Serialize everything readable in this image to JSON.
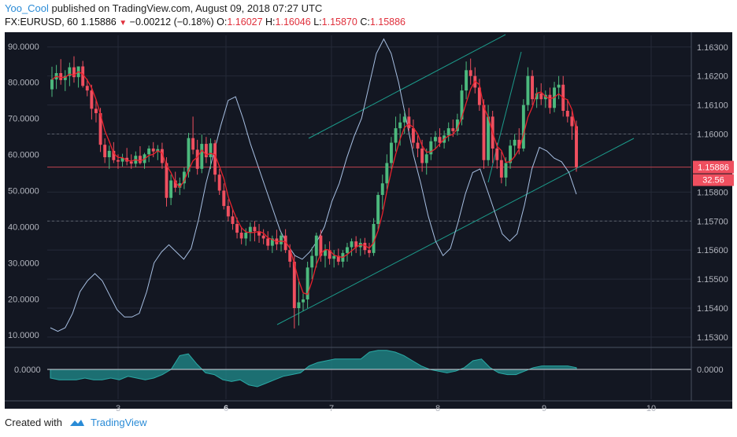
{
  "header": {
    "author": "Yoo_Cool",
    "published_text": "published on TradingView.com, August 09, 2018 07:27 UTC",
    "symbol": "FX:EURUSD, 60",
    "last": "1.15886",
    "change": "−0.00212 (−0.18%)",
    "o_label": "O:",
    "o_value": "1.16027",
    "h_label": "H:",
    "h_value": "1.16046",
    "l_label": "L:",
    "l_value": "1.15870",
    "c_label": "C:",
    "c_value": "1.15886"
  },
  "footer": {
    "created_with": "Created with",
    "brand": "TradingView"
  },
  "price_tag": "1.15886",
  "osc_tag": "32.56",
  "colors": {
    "bg": "#131722",
    "up": "#4cb97d",
    "down": "#ef4f5f",
    "ma": "#e8222d",
    "osc": "#a7bfe2",
    "channel": "#1c9a8a",
    "hist": "#1e7f80",
    "tag": "#ef4f5f"
  },
  "chart_data": {
    "type": "candlestick",
    "symbol": "FX:EURUSD",
    "interval": "60",
    "price_axis": {
      "ticks": [
        "1.16300",
        "1.16200",
        "1.16100",
        "1.16000",
        "1.15886",
        "1.15800",
        "1.15700",
        "1.15600",
        "1.15500",
        "1.15400",
        "1.15300"
      ],
      "range": [
        1.1527,
        1.1634
      ]
    },
    "osc_axis": {
      "ticks": [
        "90.0000",
        "80.0000",
        "70.0000",
        "60.0000",
        "50.0000",
        "40.0000",
        "30.0000",
        "20.0000",
        "10.0000"
      ],
      "range": [
        7,
        93
      ]
    },
    "x_axis": {
      "ticks": [
        "3",
        "6",
        "7",
        "8",
        "9",
        "10"
      ],
      "bold": [
        "6"
      ]
    },
    "candles": [
      {
        "o": 1.16154,
        "h": 1.16232,
        "l": 1.16128,
        "c": 1.16188
      },
      {
        "o": 1.16188,
        "h": 1.16238,
        "l": 1.16155,
        "c": 1.1621
      },
      {
        "o": 1.1621,
        "h": 1.16258,
        "l": 1.1617,
        "c": 1.16186
      },
      {
        "o": 1.16186,
        "h": 1.1622,
        "l": 1.16148,
        "c": 1.162
      },
      {
        "o": 1.162,
        "h": 1.16246,
        "l": 1.16165,
        "c": 1.1623
      },
      {
        "o": 1.1623,
        "h": 1.16268,
        "l": 1.16177,
        "c": 1.16196
      },
      {
        "o": 1.16196,
        "h": 1.16225,
        "l": 1.1616,
        "c": 1.16233
      },
      {
        "o": 1.16233,
        "h": 1.16252,
        "l": 1.1616,
        "c": 1.16166
      },
      {
        "o": 1.16166,
        "h": 1.1619,
        "l": 1.1613,
        "c": 1.1615
      },
      {
        "o": 1.1615,
        "h": 1.1617,
        "l": 1.1605,
        "c": 1.16087
      },
      {
        "o": 1.16087,
        "h": 1.16118,
        "l": 1.1604,
        "c": 1.16072
      },
      {
        "o": 1.16072,
        "h": 1.1609,
        "l": 1.15938,
        "c": 1.15963
      },
      {
        "o": 1.15963,
        "h": 1.15985,
        "l": 1.159,
        "c": 1.1592
      },
      {
        "o": 1.1592,
        "h": 1.1596,
        "l": 1.1588,
        "c": 1.15942
      },
      {
        "o": 1.15942,
        "h": 1.15972,
        "l": 1.159,
        "c": 1.1591
      },
      {
        "o": 1.1591,
        "h": 1.1593,
        "l": 1.1588,
        "c": 1.15905
      },
      {
        "o": 1.15905,
        "h": 1.15932,
        "l": 1.15888,
        "c": 1.15918
      },
      {
        "o": 1.15918,
        "h": 1.15952,
        "l": 1.15892,
        "c": 1.15905
      },
      {
        "o": 1.15905,
        "h": 1.1593,
        "l": 1.1588,
        "c": 1.15898
      },
      {
        "o": 1.15898,
        "h": 1.1594,
        "l": 1.15885,
        "c": 1.15925
      },
      {
        "o": 1.15925,
        "h": 1.15958,
        "l": 1.15895,
        "c": 1.159
      },
      {
        "o": 1.159,
        "h": 1.15935,
        "l": 1.1588,
        "c": 1.1593
      },
      {
        "o": 1.1593,
        "h": 1.1596,
        "l": 1.15903,
        "c": 1.1595
      },
      {
        "o": 1.1595,
        "h": 1.15972,
        "l": 1.1592,
        "c": 1.1594
      },
      {
        "o": 1.1594,
        "h": 1.15962,
        "l": 1.1591,
        "c": 1.15948
      },
      {
        "o": 1.15948,
        "h": 1.1597,
        "l": 1.1588,
        "c": 1.159
      },
      {
        "o": 1.159,
        "h": 1.1592,
        "l": 1.1575,
        "c": 1.1578
      },
      {
        "o": 1.1578,
        "h": 1.1586,
        "l": 1.15755,
        "c": 1.1584
      },
      {
        "o": 1.1584,
        "h": 1.1587,
        "l": 1.158,
        "c": 1.15815
      },
      {
        "o": 1.15815,
        "h": 1.1585,
        "l": 1.1579,
        "c": 1.1583
      },
      {
        "o": 1.1583,
        "h": 1.15885,
        "l": 1.1581,
        "c": 1.1587
      },
      {
        "o": 1.1587,
        "h": 1.16004,
        "l": 1.1585,
        "c": 1.15986
      },
      {
        "o": 1.15986,
        "h": 1.1606,
        "l": 1.1593,
        "c": 1.15946
      },
      {
        "o": 1.15946,
        "h": 1.1598,
        "l": 1.1586,
        "c": 1.1588
      },
      {
        "o": 1.1588,
        "h": 1.15998,
        "l": 1.15865,
        "c": 1.15966
      },
      {
        "o": 1.15966,
        "h": 1.1599,
        "l": 1.159,
        "c": 1.1592
      },
      {
        "o": 1.1592,
        "h": 1.15985,
        "l": 1.1588,
        "c": 1.15968
      },
      {
        "o": 1.15968,
        "h": 1.1598,
        "l": 1.15835,
        "c": 1.1586
      },
      {
        "o": 1.1586,
        "h": 1.1588,
        "l": 1.1579,
        "c": 1.15805
      },
      {
        "o": 1.15805,
        "h": 1.1583,
        "l": 1.1574,
        "c": 1.15752
      },
      {
        "o": 1.15752,
        "h": 1.15775,
        "l": 1.157,
        "c": 1.15716
      },
      {
        "o": 1.15716,
        "h": 1.1574,
        "l": 1.1567,
        "c": 1.1569
      },
      {
        "o": 1.1569,
        "h": 1.15712,
        "l": 1.1564,
        "c": 1.1566
      },
      {
        "o": 1.1566,
        "h": 1.1568,
        "l": 1.1562,
        "c": 1.1564
      },
      {
        "o": 1.1564,
        "h": 1.15675,
        "l": 1.15615,
        "c": 1.1566
      },
      {
        "o": 1.1566,
        "h": 1.15695,
        "l": 1.1563,
        "c": 1.1568
      },
      {
        "o": 1.1568,
        "h": 1.157,
        "l": 1.1563,
        "c": 1.15665
      },
      {
        "o": 1.15665,
        "h": 1.1569,
        "l": 1.15625,
        "c": 1.1565
      },
      {
        "o": 1.1565,
        "h": 1.15672,
        "l": 1.1562,
        "c": 1.1564
      },
      {
        "o": 1.1564,
        "h": 1.15665,
        "l": 1.156,
        "c": 1.15615
      },
      {
        "o": 1.15615,
        "h": 1.1565,
        "l": 1.1559,
        "c": 1.1564
      },
      {
        "o": 1.1564,
        "h": 1.1567,
        "l": 1.156,
        "c": 1.1562
      },
      {
        "o": 1.1562,
        "h": 1.1566,
        "l": 1.15595,
        "c": 1.1565
      },
      {
        "o": 1.1565,
        "h": 1.15672,
        "l": 1.1559,
        "c": 1.156
      },
      {
        "o": 1.156,
        "h": 1.1562,
        "l": 1.1554,
        "c": 1.1556
      },
      {
        "o": 1.1556,
        "h": 1.1558,
        "l": 1.1533,
        "c": 1.154
      },
      {
        "o": 1.154,
        "h": 1.155,
        "l": 1.1534,
        "c": 1.1542
      },
      {
        "o": 1.1542,
        "h": 1.1545,
        "l": 1.1539,
        "c": 1.1543
      },
      {
        "o": 1.1543,
        "h": 1.1556,
        "l": 1.154,
        "c": 1.1554
      },
      {
        "o": 1.1554,
        "h": 1.1561,
        "l": 1.155,
        "c": 1.1558
      },
      {
        "o": 1.1558,
        "h": 1.1566,
        "l": 1.1554,
        "c": 1.1565
      },
      {
        "o": 1.1565,
        "h": 1.1567,
        "l": 1.1556,
        "c": 1.1558
      },
      {
        "o": 1.1558,
        "h": 1.1562,
        "l": 1.1554,
        "c": 1.156
      },
      {
        "o": 1.156,
        "h": 1.1563,
        "l": 1.1555,
        "c": 1.1557
      },
      {
        "o": 1.1557,
        "h": 1.156,
        "l": 1.1554,
        "c": 1.1558
      },
      {
        "o": 1.1558,
        "h": 1.15605,
        "l": 1.15548,
        "c": 1.1556
      },
      {
        "o": 1.1556,
        "h": 1.156,
        "l": 1.1554,
        "c": 1.1559
      },
      {
        "o": 1.1559,
        "h": 1.15625,
        "l": 1.1556,
        "c": 1.1561
      },
      {
        "o": 1.1561,
        "h": 1.1564,
        "l": 1.1558,
        "c": 1.1563
      },
      {
        "o": 1.1563,
        "h": 1.15648,
        "l": 1.1559,
        "c": 1.1561
      },
      {
        "o": 1.1561,
        "h": 1.1564,
        "l": 1.1558,
        "c": 1.15625
      },
      {
        "o": 1.15625,
        "h": 1.15642,
        "l": 1.15585,
        "c": 1.156
      },
      {
        "o": 1.156,
        "h": 1.15625,
        "l": 1.15575,
        "c": 1.1559
      },
      {
        "o": 1.1559,
        "h": 1.1571,
        "l": 1.1558,
        "c": 1.1569
      },
      {
        "o": 1.1569,
        "h": 1.158,
        "l": 1.1567,
        "c": 1.1579
      },
      {
        "o": 1.1579,
        "h": 1.1586,
        "l": 1.1574,
        "c": 1.1583
      },
      {
        "o": 1.1583,
        "h": 1.1593,
        "l": 1.1581,
        "c": 1.159
      },
      {
        "o": 1.159,
        "h": 1.1599,
        "l": 1.1588,
        "c": 1.1597
      },
      {
        "o": 1.1597,
        "h": 1.1606,
        "l": 1.1594,
        "c": 1.1602
      },
      {
        "o": 1.1602,
        "h": 1.1607,
        "l": 1.1596,
        "c": 1.1604
      },
      {
        "o": 1.1604,
        "h": 1.1608,
        "l": 1.16,
        "c": 1.1606
      },
      {
        "o": 1.1606,
        "h": 1.1609,
        "l": 1.1601,
        "c": 1.1602
      },
      {
        "o": 1.1602,
        "h": 1.1605,
        "l": 1.1595,
        "c": 1.1597
      },
      {
        "o": 1.1597,
        "h": 1.15995,
        "l": 1.1592,
        "c": 1.1595
      },
      {
        "o": 1.1595,
        "h": 1.1598,
        "l": 1.1587,
        "c": 1.159
      },
      {
        "o": 1.159,
        "h": 1.1595,
        "l": 1.1586,
        "c": 1.1593
      },
      {
        "o": 1.1593,
        "h": 1.1599,
        "l": 1.1591,
        "c": 1.15975
      },
      {
        "o": 1.15975,
        "h": 1.1601,
        "l": 1.1595,
        "c": 1.1599
      },
      {
        "o": 1.1599,
        "h": 1.1602,
        "l": 1.15955,
        "c": 1.1597
      },
      {
        "o": 1.1597,
        "h": 1.16012,
        "l": 1.1595,
        "c": 1.15995
      },
      {
        "o": 1.15995,
        "h": 1.1604,
        "l": 1.15975,
        "c": 1.1602
      },
      {
        "o": 1.1602,
        "h": 1.1605,
        "l": 1.1599,
        "c": 1.1601
      },
      {
        "o": 1.1601,
        "h": 1.1607,
        "l": 1.15995,
        "c": 1.1605
      },
      {
        "o": 1.1605,
        "h": 1.1617,
        "l": 1.1603,
        "c": 1.1615
      },
      {
        "o": 1.1615,
        "h": 1.1625,
        "l": 1.1612,
        "c": 1.1622
      },
      {
        "o": 1.1622,
        "h": 1.1626,
        "l": 1.1617,
        "c": 1.162
      },
      {
        "o": 1.162,
        "h": 1.1623,
        "l": 1.1614,
        "c": 1.1616
      },
      {
        "o": 1.1616,
        "h": 1.1619,
        "l": 1.1608,
        "c": 1.161
      },
      {
        "o": 1.161,
        "h": 1.1612,
        "l": 1.1588,
        "c": 1.1591
      },
      {
        "o": 1.1591,
        "h": 1.161,
        "l": 1.1589,
        "c": 1.1606
      },
      {
        "o": 1.1606,
        "h": 1.1608,
        "l": 1.159,
        "c": 1.1595
      },
      {
        "o": 1.1595,
        "h": 1.1597,
        "l": 1.1588,
        "c": 1.1591
      },
      {
        "o": 1.1591,
        "h": 1.1594,
        "l": 1.1583,
        "c": 1.1585
      },
      {
        "o": 1.1585,
        "h": 1.1592,
        "l": 1.1582,
        "c": 1.159
      },
      {
        "o": 1.159,
        "h": 1.1598,
        "l": 1.1588,
        "c": 1.1596
      },
      {
        "o": 1.1596,
        "h": 1.16,
        "l": 1.1592,
        "c": 1.1598
      },
      {
        "o": 1.1598,
        "h": 1.1602,
        "l": 1.1593,
        "c": 1.1595
      },
      {
        "o": 1.1595,
        "h": 1.1612,
        "l": 1.1594,
        "c": 1.161
      },
      {
        "o": 1.161,
        "h": 1.1623,
        "l": 1.1608,
        "c": 1.162
      },
      {
        "o": 1.162,
        "h": 1.1622,
        "l": 1.161,
        "c": 1.1612
      },
      {
        "o": 1.1612,
        "h": 1.1616,
        "l": 1.1609,
        "c": 1.1614
      },
      {
        "o": 1.1614,
        "h": 1.16175,
        "l": 1.161,
        "c": 1.1612
      },
      {
        "o": 1.1612,
        "h": 1.1615,
        "l": 1.1609,
        "c": 1.16135
      },
      {
        "o": 1.16135,
        "h": 1.1616,
        "l": 1.1607,
        "c": 1.1609
      },
      {
        "o": 1.1609,
        "h": 1.1618,
        "l": 1.16075,
        "c": 1.1616
      },
      {
        "o": 1.1616,
        "h": 1.162,
        "l": 1.1612,
        "c": 1.1617
      },
      {
        "o": 1.1617,
        "h": 1.162,
        "l": 1.1606,
        "c": 1.1608
      },
      {
        "o": 1.1608,
        "h": 1.1612,
        "l": 1.1604,
        "c": 1.1606
      },
      {
        "o": 1.1606,
        "h": 1.1608,
        "l": 1.1598,
        "c": 1.16027
      },
      {
        "o": 1.16027,
        "h": 1.16046,
        "l": 1.1587,
        "c": 1.15886
      }
    ],
    "oscillator_values": [
      12,
      11,
      12,
      16,
      22,
      25,
      27,
      25,
      21,
      17,
      15,
      15,
      16,
      22,
      30,
      33,
      35,
      33,
      31,
      34,
      42,
      52,
      60,
      68,
      75,
      76,
      70,
      63,
      57,
      51,
      45,
      39,
      35,
      32,
      31,
      33,
      36,
      40,
      47,
      52,
      59,
      65,
      70,
      79,
      88,
      92,
      88,
      80,
      70,
      60,
      52,
      43,
      36,
      32,
      34,
      41,
      49,
      55,
      56,
      50,
      44,
      38,
      36,
      38,
      46,
      56,
      62,
      61,
      59,
      58,
      55,
      49
    ],
    "histogram_values": [
      -0.5,
      -0.6,
      -0.6,
      -0.6,
      -0.5,
      -0.6,
      -0.6,
      -0.5,
      -0.6,
      -0.4,
      -0.5,
      -0.6,
      -0.5,
      -0.3,
      0,
      0.8,
      0.9,
      0.3,
      -0.2,
      -0.3,
      -0.6,
      -0.7,
      -0.6,
      -0.9,
      -1.0,
      -0.8,
      -0.6,
      -0.4,
      -0.3,
      -0.2,
      0.2,
      0.4,
      0.5,
      0.6,
      0.6,
      0.6,
      0.6,
      1.0,
      1.1,
      1.1,
      1.0,
      0.8,
      0.5,
      0.2,
      0,
      -0.1,
      -0.2,
      -0.1,
      0.1,
      0.5,
      0.6,
      0.1,
      -0.2,
      -0.3,
      -0.3,
      -0.1,
      0.1,
      0.2,
      0.2,
      0.2,
      0.2,
      0.1
    ],
    "moving_average": "red line following price closes",
    "horizontal_lines": [
      1.15886,
      1.16,
      1.157
    ]
  }
}
